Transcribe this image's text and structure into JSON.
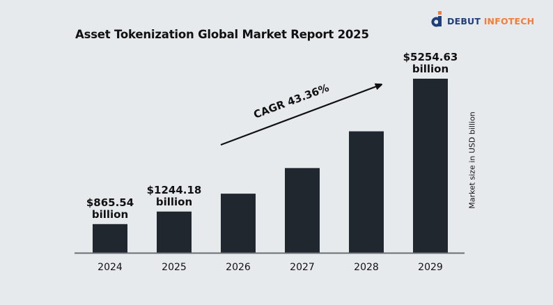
{
  "brand": {
    "name_part1": "DEBUT",
    "name_part2": "INFOTECH",
    "primary_color": "#1f3f7a",
    "accent_color": "#f07d3a"
  },
  "chart_data": {
    "type": "bar",
    "title": "Asset Tokenization Global Market Report 2025",
    "xlabel": "",
    "ylabel": "Market size in USD billion",
    "categories": [
      "2024",
      "2025",
      "2026",
      "2027",
      "2028",
      "2029"
    ],
    "values": [
      865.54,
      1244.18,
      1784,
      2557,
      3666,
      5254.63
    ],
    "data_labels": [
      {
        "index": 0,
        "line1": "$865.54",
        "line2": "billion"
      },
      {
        "index": 1,
        "line1": "$1244.18",
        "line2": "billion"
      },
      {
        "index": 5,
        "line1": "$5254.63",
        "line2": "billion"
      }
    ],
    "annotation": "CAGR 43.36%",
    "ylim": [
      0,
      5254.63
    ],
    "grid": false,
    "bar_color": "#20272e",
    "axis_color": "#6b6e72"
  }
}
